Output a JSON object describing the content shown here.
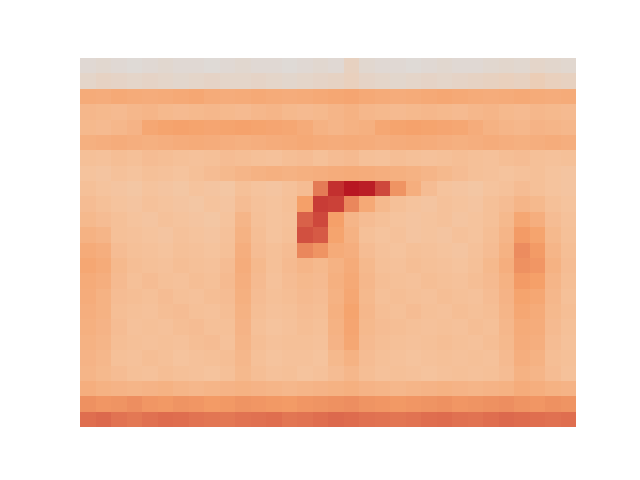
{
  "chart_data": {
    "type": "heatmap",
    "tick_labels": false,
    "grid": false,
    "zlim": [
      0,
      100
    ],
    "cells": [
      [
        3,
        4,
        3,
        2,
        3,
        4,
        3,
        3,
        2,
        3,
        4,
        3,
        3,
        2,
        3,
        4,
        3,
        9,
        4,
        3,
        3,
        2,
        3,
        4,
        3,
        3,
        4,
        5,
        4,
        6,
        5,
        4
      ],
      [
        6,
        8,
        7,
        6,
        7,
        6,
        5,
        6,
        7,
        6,
        6,
        7,
        6,
        5,
        6,
        7,
        8,
        10,
        7,
        6,
        5,
        6,
        7,
        6,
        7,
        8,
        9,
        10,
        9,
        12,
        10,
        9
      ],
      [
        34,
        33,
        35,
        34,
        33,
        34,
        35,
        36,
        34,
        33,
        34,
        35,
        34,
        33,
        34,
        35,
        36,
        37,
        35,
        34,
        33,
        34,
        35,
        36,
        35,
        34,
        33,
        34,
        35,
        34,
        33,
        34
      ],
      [
        27,
        26,
        25,
        27,
        28,
        26,
        25,
        26,
        27,
        26,
        25,
        27,
        28,
        26,
        25,
        26,
        28,
        30,
        27,
        26,
        25,
        26,
        27,
        26,
        25,
        27,
        28,
        26,
        25,
        27,
        26,
        25
      ],
      [
        26,
        25,
        27,
        29,
        36,
        38,
        39,
        38,
        37,
        38,
        39,
        38,
        37,
        36,
        34,
        30,
        28,
        30,
        31,
        36,
        38,
        39,
        38,
        37,
        36,
        33,
        30,
        28,
        27,
        29,
        28,
        27
      ],
      [
        31,
        32,
        33,
        32,
        31,
        32,
        33,
        34,
        33,
        32,
        31,
        32,
        33,
        34,
        35,
        34,
        33,
        34,
        33,
        32,
        33,
        34,
        33,
        32,
        31,
        32,
        33,
        32,
        31,
        32,
        33,
        32
      ],
      [
        22,
        21,
        23,
        22,
        24,
        23,
        22,
        21,
        22,
        24,
        23,
        22,
        21,
        23,
        24,
        22,
        24,
        25,
        22,
        21,
        23,
        22,
        21,
        22,
        23,
        22,
        21,
        23,
        24,
        22,
        21,
        22
      ],
      [
        20,
        19,
        21,
        20,
        22,
        21,
        20,
        22,
        24,
        26,
        28,
        30,
        31,
        30,
        31,
        32,
        33,
        34,
        33,
        32,
        31,
        30,
        28,
        26,
        24,
        22,
        21,
        20,
        21,
        22,
        20,
        19
      ],
      [
        22,
        20,
        19,
        18,
        20,
        19,
        18,
        20,
        19,
        18,
        22,
        20,
        19,
        21,
        24,
        55,
        85,
        95,
        92,
        75,
        45,
        32,
        24,
        20,
        19,
        18,
        20,
        21,
        24,
        22,
        20,
        19
      ],
      [
        24,
        22,
        20,
        19,
        21,
        20,
        19,
        18,
        20,
        19,
        24,
        21,
        20,
        22,
        40,
        80,
        78,
        50,
        35,
        26,
        22,
        20,
        19,
        21,
        20,
        19,
        22,
        24,
        28,
        26,
        22,
        20
      ],
      [
        26,
        24,
        22,
        20,
        19,
        21,
        20,
        19,
        18,
        20,
        28,
        22,
        20,
        21,
        65,
        75,
        40,
        28,
        24,
        22,
        20,
        19,
        20,
        21,
        19,
        20,
        22,
        26,
        36,
        32,
        24,
        21
      ],
      [
        30,
        28,
        22,
        21,
        20,
        19,
        21,
        20,
        19,
        21,
        30,
        23,
        20,
        22,
        72,
        68,
        38,
        30,
        22,
        20,
        21,
        19,
        20,
        19,
        21,
        20,
        23,
        28,
        42,
        38,
        26,
        22
      ],
      [
        34,
        32,
        24,
        22,
        21,
        20,
        22,
        21,
        20,
        22,
        32,
        24,
        22,
        24,
        50,
        45,
        34,
        32,
        24,
        21,
        20,
        22,
        21,
        20,
        19,
        21,
        24,
        30,
        48,
        42,
        28,
        23
      ],
      [
        36,
        34,
        26,
        23,
        22,
        21,
        23,
        22,
        21,
        24,
        33,
        26,
        22,
        25,
        28,
        26,
        30,
        34,
        26,
        22,
        21,
        23,
        22,
        21,
        20,
        22,
        26,
        32,
        46,
        44,
        30,
        24
      ],
      [
        34,
        32,
        25,
        22,
        24,
        22,
        21,
        23,
        22,
        25,
        32,
        25,
        21,
        24,
        26,
        25,
        31,
        35,
        27,
        23,
        22,
        21,
        23,
        22,
        21,
        23,
        25,
        30,
        42,
        40,
        28,
        23
      ],
      [
        33,
        30,
        24,
        23,
        22,
        24,
        22,
        21,
        23,
        24,
        31,
        24,
        22,
        23,
        25,
        24,
        30,
        36,
        26,
        22,
        23,
        22,
        21,
        23,
        22,
        21,
        24,
        29,
        38,
        36,
        27,
        22
      ],
      [
        32,
        30,
        23,
        22,
        21,
        23,
        24,
        22,
        21,
        23,
        30,
        23,
        21,
        22,
        24,
        23,
        31,
        38,
        27,
        23,
        22,
        24,
        22,
        21,
        23,
        22,
        23,
        28,
        36,
        34,
        26,
        23
      ],
      [
        31,
        29,
        24,
        21,
        22,
        21,
        23,
        24,
        22,
        22,
        29,
        22,
        20,
        21,
        23,
        22,
        30,
        37,
        26,
        24,
        23,
        22,
        21,
        22,
        21,
        23,
        22,
        27,
        34,
        33,
        25,
        22
      ],
      [
        30,
        28,
        23,
        22,
        21,
        22,
        21,
        23,
        24,
        21,
        28,
        23,
        21,
        22,
        22,
        21,
        29,
        36,
        25,
        23,
        22,
        21,
        22,
        23,
        22,
        21,
        23,
        26,
        33,
        32,
        24,
        21
      ],
      [
        29,
        27,
        22,
        21,
        23,
        22,
        20,
        21,
        22,
        23,
        27,
        22,
        20,
        21,
        21,
        20,
        26,
        30,
        24,
        22,
        21,
        20,
        21,
        22,
        21,
        22,
        21,
        25,
        32,
        30,
        23,
        22
      ],
      [
        28,
        26,
        24,
        22,
        21,
        23,
        22,
        21,
        20,
        22,
        26,
        23,
        21,
        22,
        20,
        21,
        24,
        27,
        23,
        21,
        22,
        21,
        20,
        21,
        22,
        21,
        22,
        24,
        30,
        28,
        24,
        21
      ],
      [
        32,
        30,
        29,
        28,
        29,
        30,
        28,
        27,
        28,
        29,
        30,
        29,
        28,
        27,
        28,
        29,
        30,
        31,
        29,
        28,
        27,
        28,
        29,
        30,
        29,
        28,
        29,
        30,
        33,
        32,
        30,
        29
      ],
      [
        46,
        44,
        45,
        47,
        44,
        43,
        45,
        44,
        42,
        43,
        45,
        44,
        43,
        42,
        44,
        45,
        46,
        47,
        45,
        44,
        43,
        44,
        45,
        46,
        44,
        45,
        46,
        47,
        45,
        44,
        46,
        45
      ],
      [
        60,
        62,
        58,
        56,
        59,
        61,
        60,
        58,
        57,
        56,
        58,
        59,
        60,
        57,
        58,
        60,
        62,
        61,
        59,
        58,
        57,
        58,
        60,
        61,
        59,
        58,
        60,
        62,
        61,
        60,
        59,
        60
      ]
    ]
  }
}
